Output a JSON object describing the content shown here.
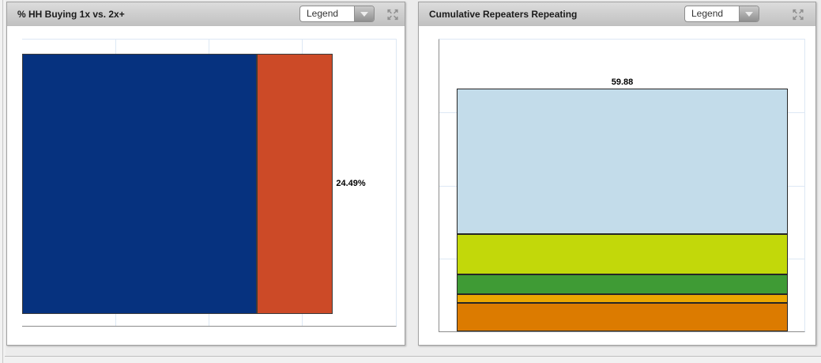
{
  "panels": [
    {
      "title": "% HH Buying 1x vs. 2x+",
      "legend": {
        "label": "Legend",
        "dropdown_icon": "chevron-down-icon"
      },
      "header_icons": [
        "maximize-icon"
      ]
    },
    {
      "title": "Cumulative Repeaters Repeating",
      "legend": {
        "label": "Legend",
        "dropdown_icon": "chevron-down-icon"
      },
      "header_icons": [
        "maximize-icon"
      ]
    }
  ],
  "chart_data": [
    {
      "type": "bar",
      "orientation": "horizontal",
      "stacked": true,
      "title": "% HH Buying 1x vs. 2x+",
      "segments": [
        {
          "value": 75.51,
          "label": "75.51%",
          "color": "#06327f"
        },
        {
          "value": 24.49,
          "label": "24.49%",
          "color": "#cc4a27"
        }
      ],
      "total": 100,
      "axis": {
        "min": 0,
        "max": 120,
        "gridline_step": 30,
        "grid": "on",
        "tick_labels": "hidden"
      },
      "grid_color": "#dde8f4",
      "axis_color": "#8c8c8c",
      "legend_position": "collapsed-dropdown"
    },
    {
      "type": "bar",
      "orientation": "vertical",
      "stacked": true,
      "title": "Cumulative Repeaters Repeating",
      "segments_top_to_bottom": [
        {
          "value": 59.88,
          "label": "59.88",
          "color": "#c3dcea"
        },
        {
          "value": 16.71,
          "label": "16.71",
          "color": "#c2d80a"
        },
        {
          "value": 8.2,
          "label": "8.20",
          "color": "#3f9b35"
        },
        {
          "value": 3.65,
          "label": "3.65",
          "color": "#eba701"
        },
        {
          "value": 11.56,
          "label": "11.56",
          "color": "#dc7b00"
        }
      ],
      "total": 100,
      "axis": {
        "min": 0,
        "max": 120,
        "gridline_step": 30,
        "grid": "on",
        "tick_labels": "hidden"
      },
      "grid_color": "#dde8f4",
      "axis_color": "#8c8c8c",
      "legend_position": "collapsed-dropdown"
    }
  ]
}
